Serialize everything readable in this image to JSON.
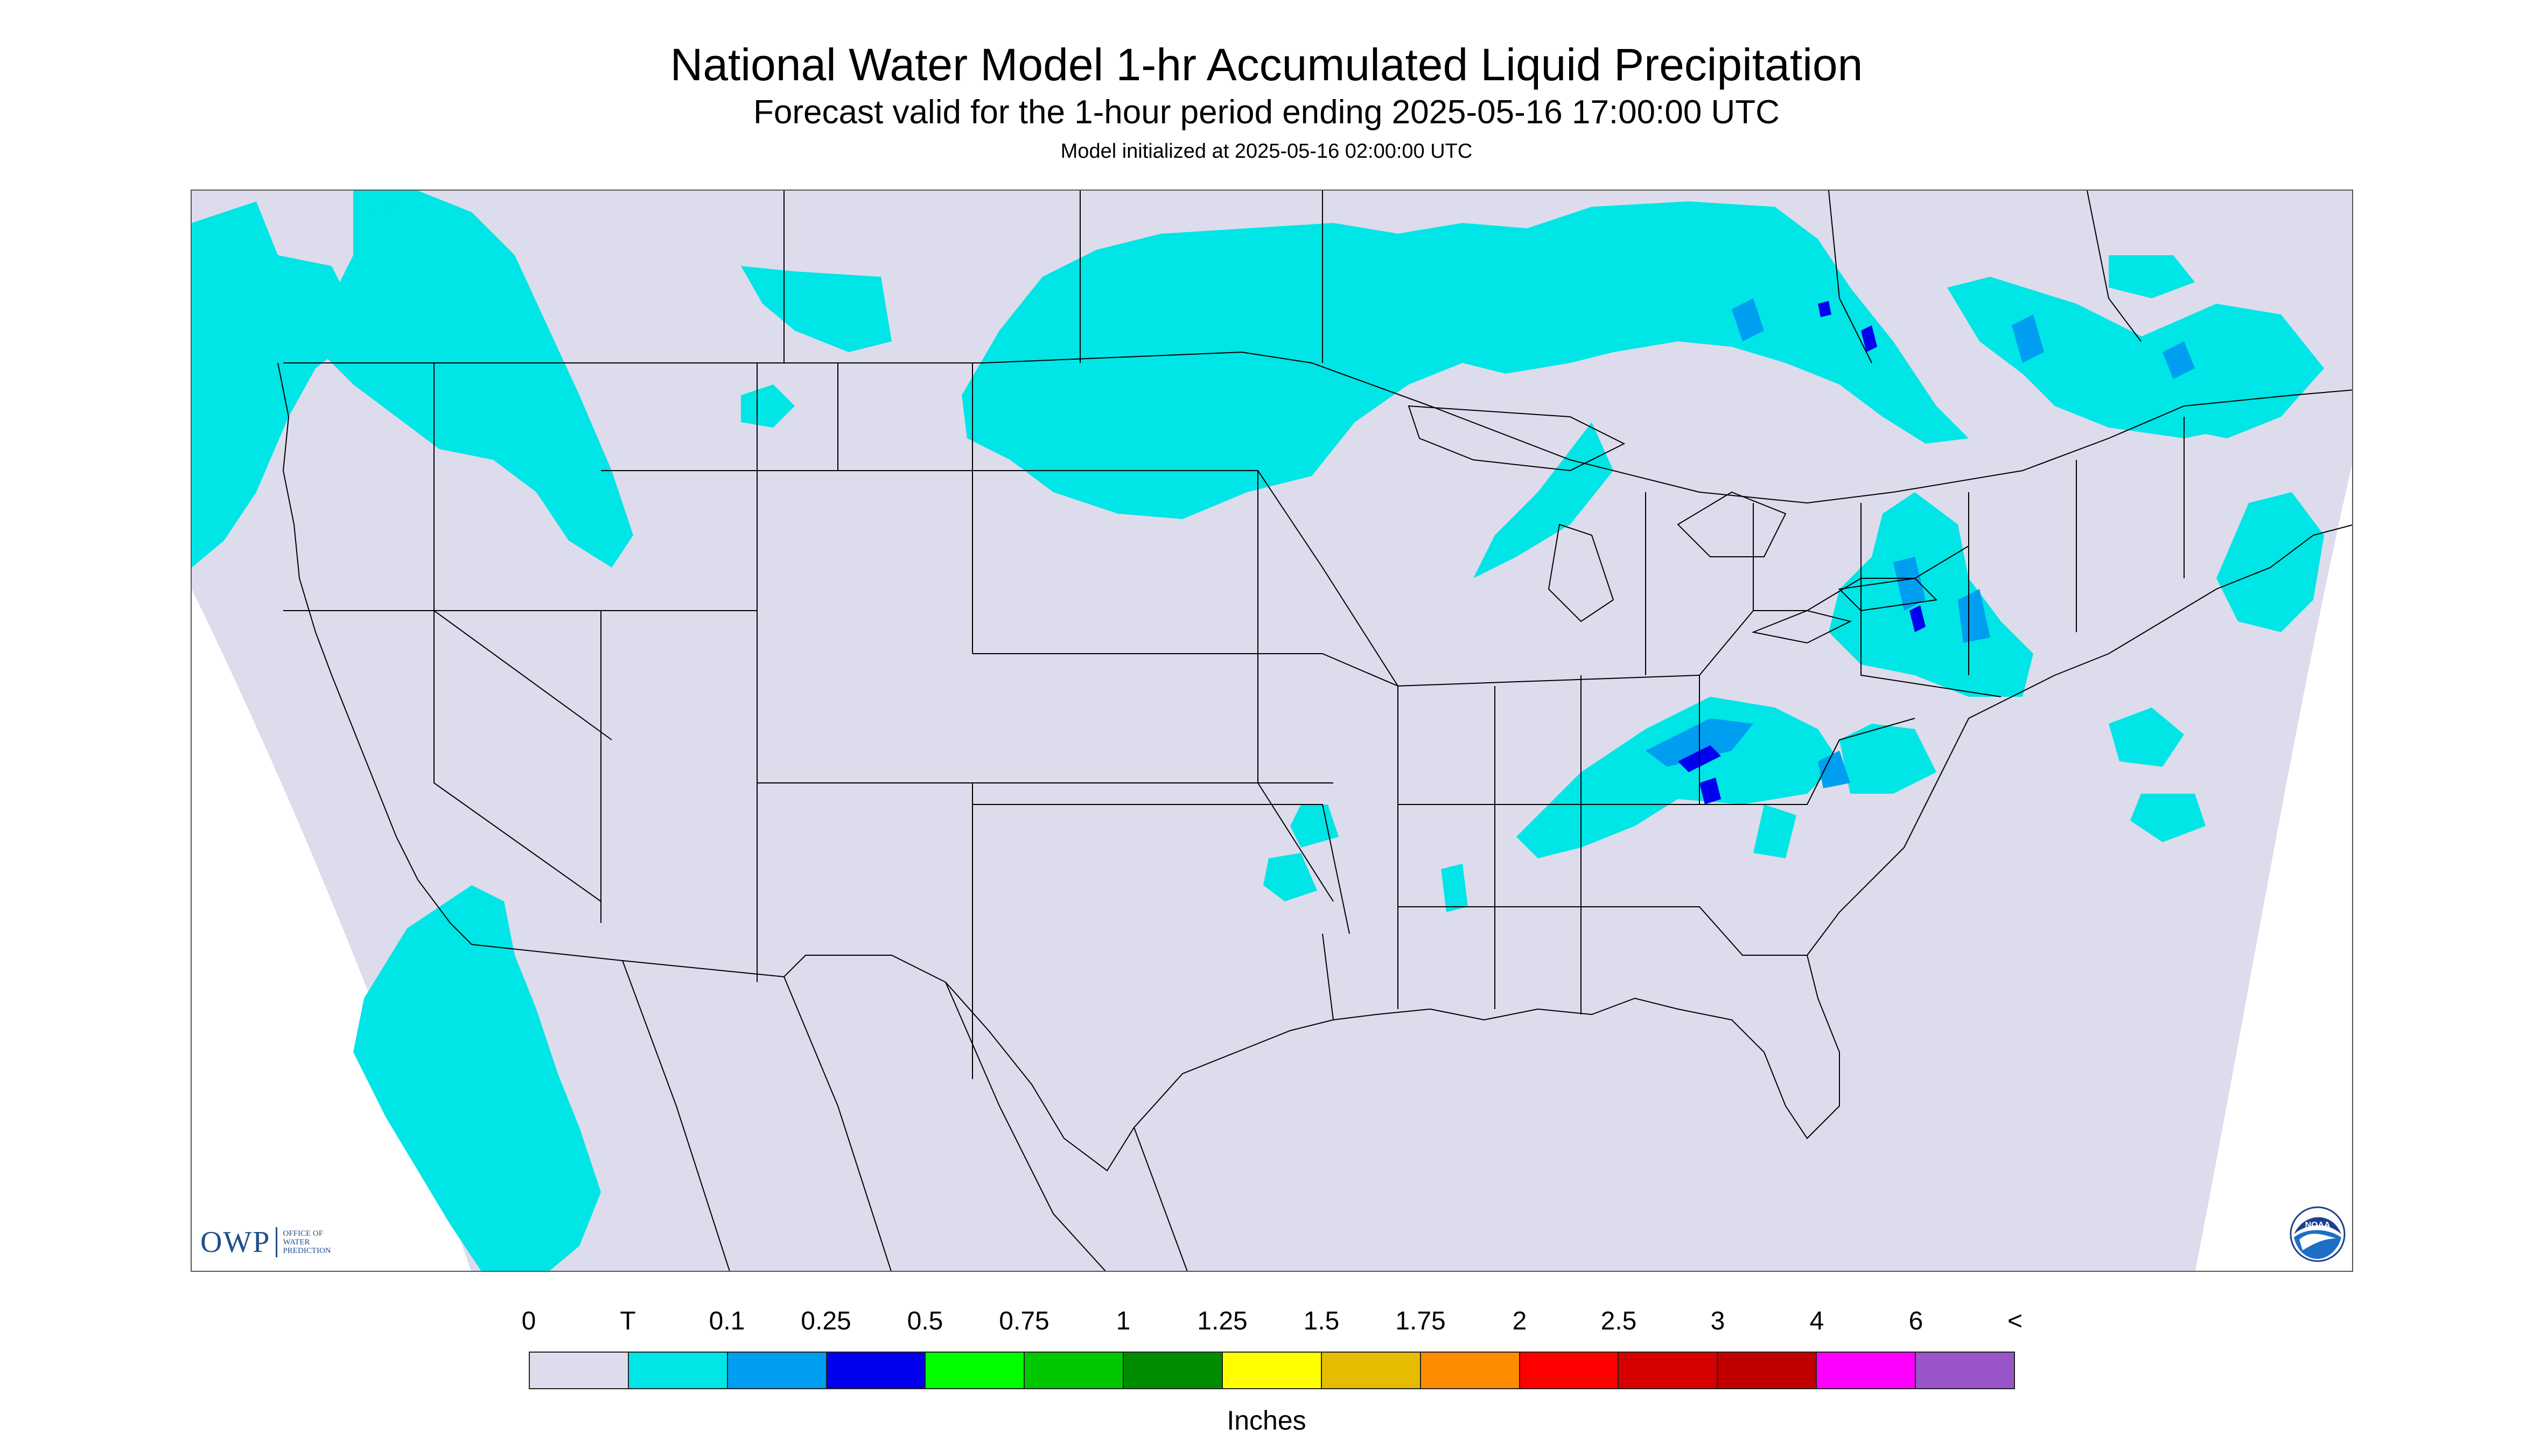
{
  "header": {
    "title": "National Water Model 1-hr Accumulated Liquid Precipitation",
    "subtitle": "Forecast valid for the 1-hour period ending 2025-05-16 17:00:00 UTC",
    "initialized": "Model initialized at 2025-05-16 02:00:00 UTC"
  },
  "map": {
    "background_color": "#dcdcec",
    "boundary_color": "#000000",
    "precip_colors": {
      "trace": "#00e5e5",
      "light": "#009ef0",
      "moderate": "#0000ee"
    }
  },
  "logos": {
    "owp": {
      "mark": "OWP",
      "line1": "Office of",
      "line2": "Water",
      "line3": "Prediction"
    },
    "noaa": {
      "text": "NOAA"
    }
  },
  "legend": {
    "unit": "Inches",
    "labels": [
      "0",
      "T",
      "0.1",
      "0.25",
      "0.5",
      "0.75",
      "1",
      "1.25",
      "1.5",
      "1.75",
      "2",
      "2.5",
      "3",
      "4",
      "6",
      "<"
    ],
    "colors": [
      "#dcdcec",
      "#00e5e5",
      "#009ef0",
      "#0000ee",
      "#00ff00",
      "#00c800",
      "#008c00",
      "#ffff00",
      "#e6bc00",
      "#ff8c00",
      "#ff0000",
      "#d60000",
      "#c00000",
      "#ff00ff",
      "#9955c9"
    ]
  }
}
